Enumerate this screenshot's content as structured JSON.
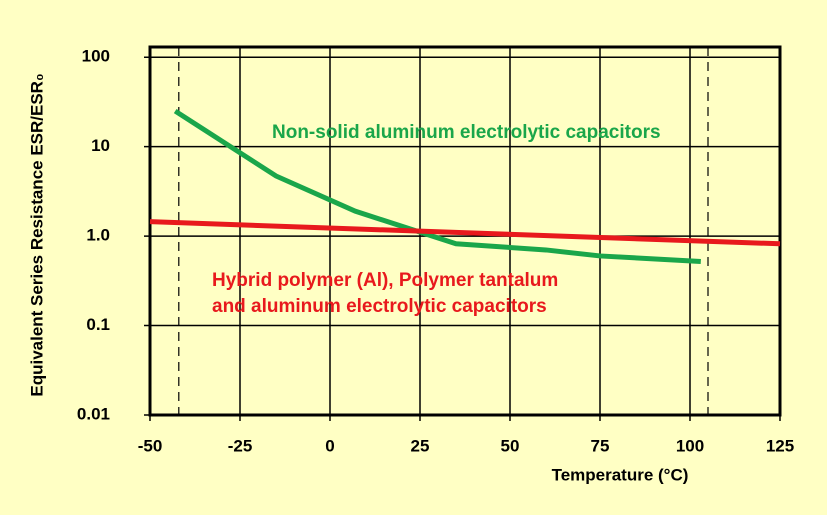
{
  "chart_data": {
    "type": "line",
    "x_label": "Temperature (°C)",
    "y_label": "Equivalent Series Resistance  ESR/ESR₀",
    "log_y": true,
    "grid": true,
    "xlim": [
      -50,
      125
    ],
    "xticks": [
      -50,
      -25,
      0,
      25,
      50,
      75,
      100,
      125
    ],
    "ylim": [
      0.01,
      130
    ],
    "yticks": [
      0.01,
      0.1,
      {
        "value": 1,
        "label": "1.0"
      },
      10,
      100
    ],
    "dashed_lines": [
      -42,
      105
    ],
    "series": [
      {
        "name": "Non-solid aluminum electrolytic capacitors",
        "color": "#1aa64a",
        "x": [
          -43,
          -15,
          7,
          35,
          60,
          75,
          103
        ],
        "values": [
          25,
          4.7,
          1.9,
          0.82,
          0.7,
          0.6,
          0.52
        ]
      },
      {
        "name": "Hybrid polymer (Al), Polymer tantalum|and aluminum electrolytic capacitors",
        "color": "#e8191d",
        "x": [
          -50,
          125
        ],
        "values": [
          1.45,
          0.82
        ]
      }
    ]
  }
}
